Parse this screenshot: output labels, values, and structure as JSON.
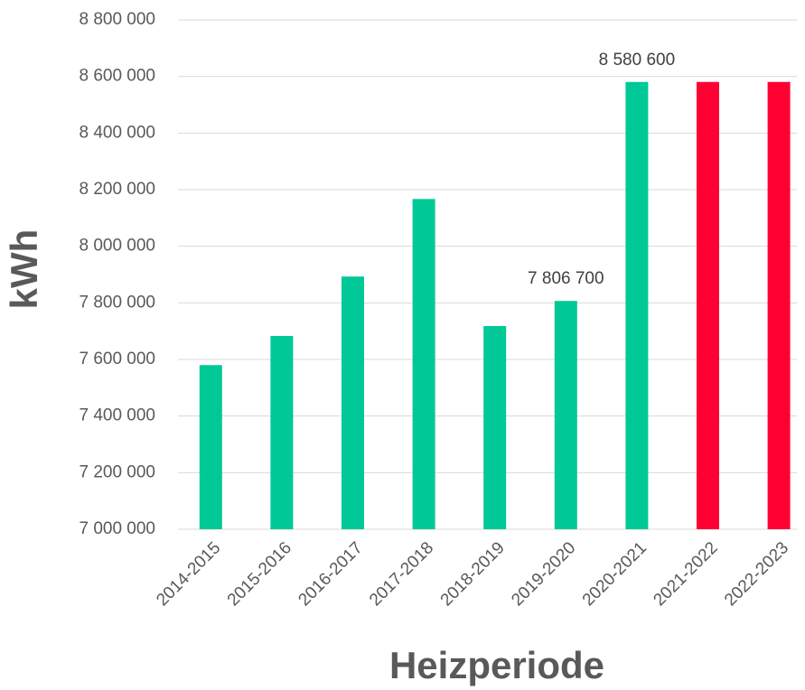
{
  "chart_data": {
    "type": "bar",
    "x_label": "Heizperiode",
    "y_label": "kWh",
    "categories": [
      "2014-2015",
      "2015-2016",
      "2016-2017",
      "2017-2018",
      "2018-2019",
      "2019-2020",
      "2020-2021",
      "2021-2022",
      "2022-2023"
    ],
    "values": [
      7580000,
      7683000,
      7893000,
      8167000,
      7718000,
      7806700,
      8580600,
      8580600,
      8580600
    ],
    "value_labels": [
      null,
      null,
      null,
      null,
      null,
      "7 806 700",
      "8 580 600",
      null,
      null
    ],
    "colors": [
      "#00c896",
      "#00c896",
      "#00c896",
      "#00c896",
      "#00c896",
      "#00c896",
      "#00c896",
      "#ff0033",
      "#ff0033"
    ],
    "ylim": [
      7000000,
      8800000
    ],
    "yticks": [
      {
        "value": 7000000,
        "label": "7 000 000"
      },
      {
        "value": 7200000,
        "label": "7 200 000"
      },
      {
        "value": 7400000,
        "label": "7 400 000"
      },
      {
        "value": 7600000,
        "label": "7 600 000"
      },
      {
        "value": 7800000,
        "label": "7 800 000"
      },
      {
        "value": 8000000,
        "label": "8 000 000"
      },
      {
        "value": 8200000,
        "label": "8 200 000"
      },
      {
        "value": 8400000,
        "label": "8 400 000"
      },
      {
        "value": 8600000,
        "label": "8 600 000"
      },
      {
        "value": 8800000,
        "label": "8 800 000"
      }
    ],
    "grid": true
  }
}
